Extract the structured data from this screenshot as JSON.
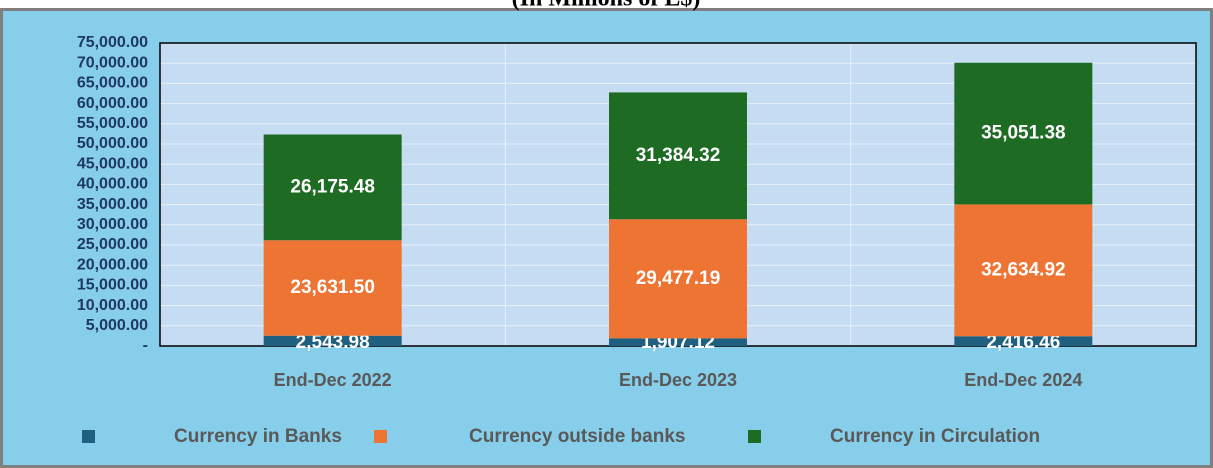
{
  "chart_data": {
    "type": "stacked_bar",
    "title": "(In Millions of L$)",
    "categories": [
      "End-Dec 2022",
      "End-Dec 2023",
      "End-Dec 2024"
    ],
    "series": [
      {
        "name": "Currency in Banks",
        "color": "#1f5f80",
        "values": [
          2543.98,
          1907.12,
          2416.46
        ],
        "value_labels": [
          "2,543.98",
          "1,907.12",
          "2,416.46"
        ]
      },
      {
        "name": "Currency outside banks",
        "color": "#ed7433",
        "values": [
          23631.5,
          29477.19,
          32634.92
        ],
        "value_labels": [
          "23,631.50",
          "29,477.19",
          "32,634.92"
        ]
      },
      {
        "name": "Currency in Circulation",
        "color": "#1e6b23",
        "values": [
          26175.48,
          31384.32,
          35051.38
        ],
        "value_labels": [
          "26,175.48",
          "31,384.32",
          "35,051.38"
        ]
      }
    ],
    "ylim": [
      0,
      75000
    ],
    "yticks": [
      {
        "value": 0,
        "label": "-"
      },
      {
        "value": 5000,
        "label": "5,000.00"
      },
      {
        "value": 10000,
        "label": "10,000.00"
      },
      {
        "value": 15000,
        "label": "15,000.00"
      },
      {
        "value": 20000,
        "label": "20,000.00"
      },
      {
        "value": 25000,
        "label": "25,000.00"
      },
      {
        "value": 30000,
        "label": "30,000.00"
      },
      {
        "value": 35000,
        "label": "35,000.00"
      },
      {
        "value": 40000,
        "label": "40,000.00"
      },
      {
        "value": 45000,
        "label": "45,000.00"
      },
      {
        "value": 50000,
        "label": "50,000.00"
      },
      {
        "value": 55000,
        "label": "55,000.00"
      },
      {
        "value": 60000,
        "label": "60,000.00"
      },
      {
        "value": 65000,
        "label": "65,000.00"
      },
      {
        "value": 70000,
        "label": "70,000.00"
      },
      {
        "value": 75000,
        "label": "75,000.00"
      }
    ],
    "grid": true,
    "legend": "bottom"
  }
}
